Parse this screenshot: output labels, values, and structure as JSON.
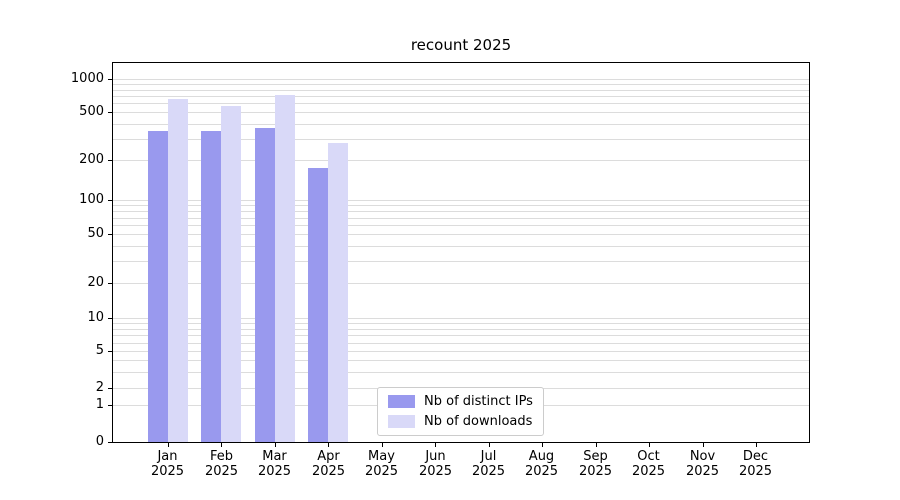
{
  "chart_data": {
    "type": "bar",
    "title": "recount 2025",
    "categories": [
      "Jan",
      "Feb",
      "Mar",
      "Apr",
      "May",
      "Jun",
      "Jul",
      "Aug",
      "Sep",
      "Oct",
      "Nov",
      "Dec"
    ],
    "year_label": "2025",
    "series": [
      {
        "name": "Nb of distinct IPs",
        "color": "#9999ee",
        "values": [
          350,
          350,
          370,
          175,
          null,
          null,
          null,
          null,
          null,
          null,
          null,
          null
        ]
      },
      {
        "name": "Nb of downloads",
        "color": "#d9d9f8",
        "values": [
          650,
          560,
          720,
          280,
          null,
          null,
          null,
          null,
          null,
          null,
          null,
          null
        ]
      }
    ],
    "y_ticks": [
      0,
      1,
      2,
      5,
      10,
      20,
      50,
      100,
      200,
      500,
      1000
    ],
    "y_scale": "symlog",
    "ylim": [
      0,
      1300
    ],
    "xlabel": "",
    "ylabel": "",
    "grid": "horizontal major+minor light gray",
    "legend_position": "lower center inside plot"
  }
}
